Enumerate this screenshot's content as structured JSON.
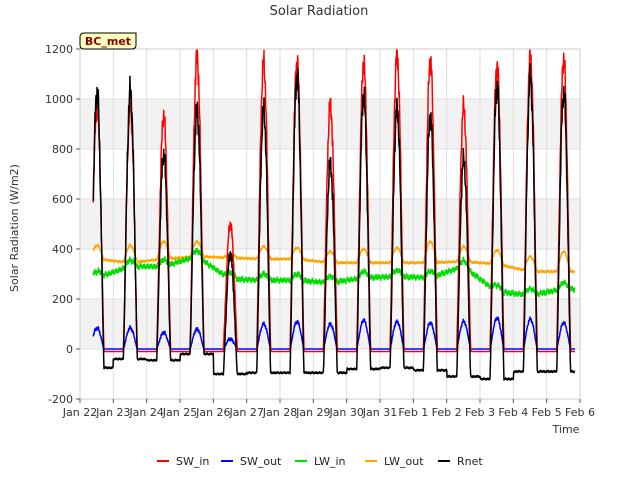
{
  "chart_data": {
    "type": "line",
    "title": "Solar Radiation",
    "xlabel": "Time",
    "ylabel": "Solar Radiation (W/m2)",
    "badge": "BC_met",
    "ylim": [
      -200,
      1200
    ],
    "yticks": [
      -200,
      0,
      200,
      400,
      600,
      800,
      1000,
      1200
    ],
    "xlim_days": [
      0,
      15
    ],
    "xtick_labels": [
      "Jan 22",
      "Jan 23",
      "Jan 24",
      "Jan 25",
      "Jan 26",
      "Jan 27",
      "Jan 28",
      "Jan 29",
      "Jan 30",
      "Jan 31",
      "Feb 1",
      "Feb 2",
      "Feb 3",
      "Feb 4",
      "Feb 5",
      "Feb 6"
    ],
    "data_start_day": 0.4,
    "data_end_day": 14.85,
    "grid": true,
    "legend_position": "bottom-center",
    "colors": {
      "SW_in": "#ff0000",
      "SW_out": "#0000ff",
      "LW_in": "#00e000",
      "LW_out": "#ffa500",
      "Rnet": "#000000"
    },
    "series": [
      {
        "name": "SW_in",
        "daily_peaks": [
          970,
          930,
          1170,
          500,
          1145,
          1150,
          975,
          1140,
          1180,
          1155,
          965,
          1135,
          1175,
          1160
        ],
        "night_value": -10
      },
      {
        "name": "SW_out",
        "daily_peaks": [
          85,
          65,
          80,
          40,
          100,
          110,
          100,
          115,
          110,
          105,
          110,
          125,
          120,
          105
        ],
        "night_value": 0
      },
      {
        "name": "LW_in",
        "daily_values": [
          285,
          330,
          330,
          370,
          280,
          275,
          275,
          265,
          285,
          290,
          285,
          330,
          230,
          215,
          240
        ],
        "peaks_near": 340
      },
      {
        "name": "LW_out",
        "daily_values": [
          360,
          345,
          360,
          370,
          365,
          360,
          360,
          345,
          345,
          345,
          345,
          350,
          340,
          310,
          310
        ],
        "daytime_peaks": [
          415,
          430,
          430,
          380,
          410,
          405,
          390,
          400,
          405,
          430,
          410,
          395,
          370,
          390
        ]
      },
      {
        "name": "Rnet",
        "daily_peaks": [
          1035,
          775,
          955,
          380,
          955,
          1095,
          740,
          1010,
          965,
          930,
          755,
          1055,
          1085,
          1025
        ],
        "night_values": [
          -75,
          -40,
          -45,
          -20,
          -100,
          -95,
          -95,
          -95,
          -80,
          -75,
          -85,
          -110,
          -120,
          -90
        ]
      }
    ]
  }
}
